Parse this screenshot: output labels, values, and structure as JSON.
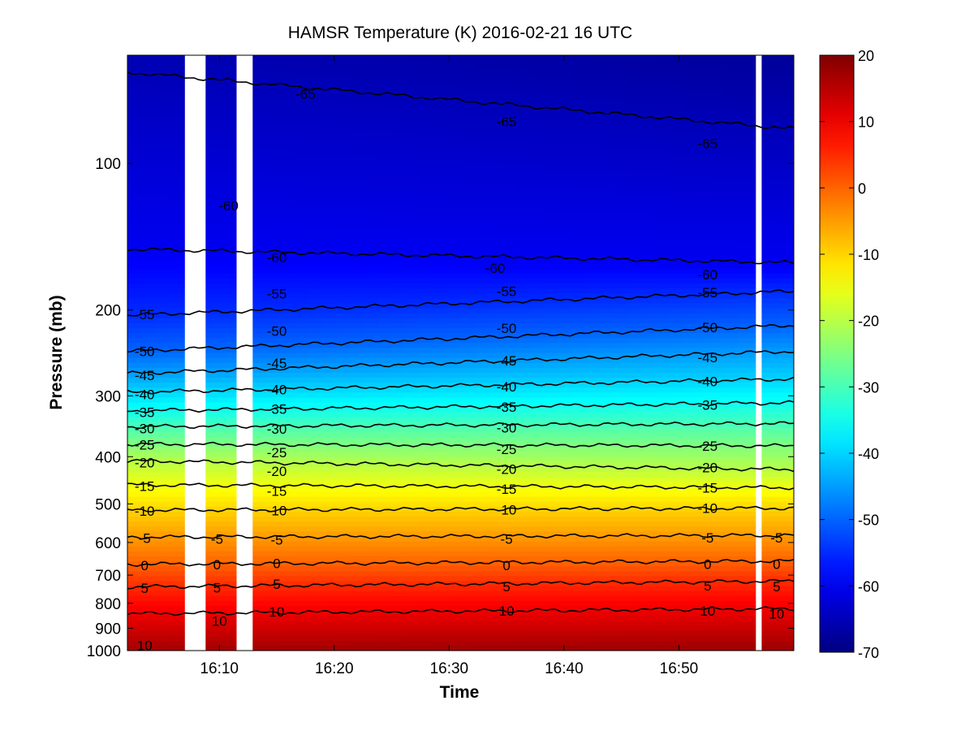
{
  "chart_data": {
    "type": "heatmap",
    "title": "HAMSR  Temperature (K) 2016-02-21 16 UTC",
    "xlabel": "Time",
    "ylabel": "Pressure (mb)",
    "x_range": [
      "16:02",
      "17:00"
    ],
    "y_range_mb": [
      60,
      1000
    ],
    "y_scale": "log",
    "y_reversed": true,
    "x_tick_labels": [
      "16:10",
      "16:20",
      "16:30",
      "16:40",
      "16:50"
    ],
    "x_tick_values_min": [
      10,
      20,
      30,
      40,
      50
    ],
    "y_tick_labels": [
      "100",
      "200",
      "300",
      "400",
      "500",
      "600",
      "700",
      "800",
      "900",
      "1000"
    ],
    "y_tick_values": [
      100,
      200,
      300,
      400,
      500,
      600,
      700,
      800,
      900,
      1000
    ],
    "colorbar": {
      "colormap": "jet",
      "range": [
        -70,
        20
      ],
      "tick_labels": [
        "20",
        "10",
        "0",
        "-10",
        "-20",
        "-30",
        "-40",
        "-50",
        "-60",
        "-70"
      ],
      "tick_values": [
        20,
        10,
        0,
        -10,
        -20,
        -30,
        -40,
        -50,
        -60,
        -70
      ]
    },
    "data_gaps_min": [
      [
        7.0,
        8.8
      ],
      [
        11.5,
        12.9
      ],
      [
        56.7,
        57.2
      ]
    ],
    "contours": [
      {
        "level": -65,
        "label": "-65",
        "p_start": 65,
        "p_end": 85
      },
      {
        "level": -60,
        "label": "-60",
        "p_start": 150,
        "p_end": 160
      },
      {
        "level": -55,
        "label": "-55",
        "p_start": 205,
        "p_end": 183
      },
      {
        "level": -50,
        "label": "-50",
        "p_start": 243,
        "p_end": 215
      },
      {
        "level": -45,
        "label": "-45",
        "p_start": 270,
        "p_end": 243
      },
      {
        "level": -40,
        "label": "-40",
        "p_start": 295,
        "p_end": 277
      },
      {
        "level": -35,
        "label": "-35",
        "p_start": 322,
        "p_end": 310
      },
      {
        "level": -30,
        "label": "-30",
        "p_start": 347,
        "p_end": 342
      },
      {
        "level": -25,
        "label": "-25",
        "p_start": 377,
        "p_end": 380
      },
      {
        "level": -20,
        "label": "-20",
        "p_start": 408,
        "p_end": 425
      },
      {
        "level": -15,
        "label": "-15",
        "p_start": 457,
        "p_end": 463
      },
      {
        "level": -10,
        "label": "-10",
        "p_start": 515,
        "p_end": 510
      },
      {
        "level": -5,
        "label": "-5",
        "p_start": 585,
        "p_end": 580
      },
      {
        "level": 0,
        "label": "0",
        "p_start": 665,
        "p_end": 655
      },
      {
        "level": 5,
        "label": "5",
        "p_start": 740,
        "p_end": 720
      },
      {
        "level": 10,
        "label": "10",
        "p_start": 840,
        "p_end": 820
      }
    ],
    "contour_labels": [
      {
        "text": "-65",
        "t": 17.5,
        "p": 72
      },
      {
        "text": "-65",
        "t": 35.0,
        "p": 82
      },
      {
        "text": "-65",
        "t": 52.5,
        "p": 91
      },
      {
        "text": "-60",
        "t": 10.8,
        "p": 122
      },
      {
        "text": "-60",
        "t": 15.0,
        "p": 156
      },
      {
        "text": "-60",
        "t": 34.0,
        "p": 164
      },
      {
        "text": "-60",
        "t": 52.5,
        "p": 169
      },
      {
        "text": "-55",
        "t": 3.5,
        "p": 204
      },
      {
        "text": "-55",
        "t": 15.0,
        "p": 185
      },
      {
        "text": "-55",
        "t": 35.0,
        "p": 183
      },
      {
        "text": "-55",
        "t": 52.5,
        "p": 184
      },
      {
        "text": "-50",
        "t": 3.5,
        "p": 243
      },
      {
        "text": "-50",
        "t": 15.0,
        "p": 221
      },
      {
        "text": "-50",
        "t": 35.0,
        "p": 218
      },
      {
        "text": "-50",
        "t": 52.5,
        "p": 217
      },
      {
        "text": "-45",
        "t": 3.5,
        "p": 272
      },
      {
        "text": "-45",
        "t": 15.0,
        "p": 257
      },
      {
        "text": "-45",
        "t": 35.0,
        "p": 254
      },
      {
        "text": "-45",
        "t": 52.5,
        "p": 250
      },
      {
        "text": "-40",
        "t": 3.5,
        "p": 298
      },
      {
        "text": "-40",
        "t": 15.0,
        "p": 291
      },
      {
        "text": "-40",
        "t": 35.0,
        "p": 287
      },
      {
        "text": "-40",
        "t": 52.5,
        "p": 280
      },
      {
        "text": "-35",
        "t": 3.5,
        "p": 324
      },
      {
        "text": "-35",
        "t": 15.0,
        "p": 319
      },
      {
        "text": "-35",
        "t": 35.0,
        "p": 316
      },
      {
        "text": "-35",
        "t": 52.5,
        "p": 313
      },
      {
        "text": "-30",
        "t": 3.5,
        "p": 350
      },
      {
        "text": "-30",
        "t": 15.0,
        "p": 351
      },
      {
        "text": "-30",
        "t": 35.0,
        "p": 349
      },
      {
        "text": "-25",
        "t": 3.5,
        "p": 378
      },
      {
        "text": "-25",
        "t": 15.0,
        "p": 392
      },
      {
        "text": "-25",
        "t": 35.0,
        "p": 386
      },
      {
        "text": "-25",
        "t": 52.5,
        "p": 380
      },
      {
        "text": "-20",
        "t": 3.5,
        "p": 411
      },
      {
        "text": "-20",
        "t": 15.0,
        "p": 428
      },
      {
        "text": "-20",
        "t": 35.0,
        "p": 424
      },
      {
        "text": "-20",
        "t": 52.5,
        "p": 421
      },
      {
        "text": "-15",
        "t": 3.5,
        "p": 460
      },
      {
        "text": "-15",
        "t": 15.0,
        "p": 470
      },
      {
        "text": "-15",
        "t": 35.0,
        "p": 466
      },
      {
        "text": "-15",
        "t": 52.5,
        "p": 463
      },
      {
        "text": "-10",
        "t": 3.5,
        "p": 517
      },
      {
        "text": "-10",
        "t": 15.0,
        "p": 516
      },
      {
        "text": "-10",
        "t": 35.0,
        "p": 514
      },
      {
        "text": "-10",
        "t": 52.5,
        "p": 510
      },
      {
        "text": "-5",
        "t": 3.5,
        "p": 588
      },
      {
        "text": "-5",
        "t": 9.8,
        "p": 590
      },
      {
        "text": "-5",
        "t": 15.0,
        "p": 592
      },
      {
        "text": "-5",
        "t": 35.0,
        "p": 590
      },
      {
        "text": "-5",
        "t": 52.5,
        "p": 587
      },
      {
        "text": "-5",
        "t": 58.5,
        "p": 587
      },
      {
        "text": "0",
        "t": 3.5,
        "p": 668
      },
      {
        "text": "0",
        "t": 9.8,
        "p": 666
      },
      {
        "text": "0",
        "t": 15.0,
        "p": 662
      },
      {
        "text": "0",
        "t": 35.0,
        "p": 668
      },
      {
        "text": "0",
        "t": 52.5,
        "p": 665
      },
      {
        "text": "0",
        "t": 58.5,
        "p": 665
      },
      {
        "text": "5",
        "t": 3.5,
        "p": 744
      },
      {
        "text": "5",
        "t": 9.8,
        "p": 742
      },
      {
        "text": "5",
        "t": 15.0,
        "p": 730
      },
      {
        "text": "5",
        "t": 35.0,
        "p": 738
      },
      {
        "text": "5",
        "t": 52.5,
        "p": 736
      },
      {
        "text": "5",
        "t": 58.5,
        "p": 738
      },
      {
        "text": "10",
        "t": 10.0,
        "p": 870
      },
      {
        "text": "10",
        "t": 15.0,
        "p": 832
      },
      {
        "text": "10",
        "t": 35.0,
        "p": 828
      },
      {
        "text": "10",
        "t": 52.5,
        "p": 828
      },
      {
        "text": "10",
        "t": 58.5,
        "p": 840
      },
      {
        "text": "10",
        "t": 3.5,
        "p": 975
      }
    ]
  }
}
